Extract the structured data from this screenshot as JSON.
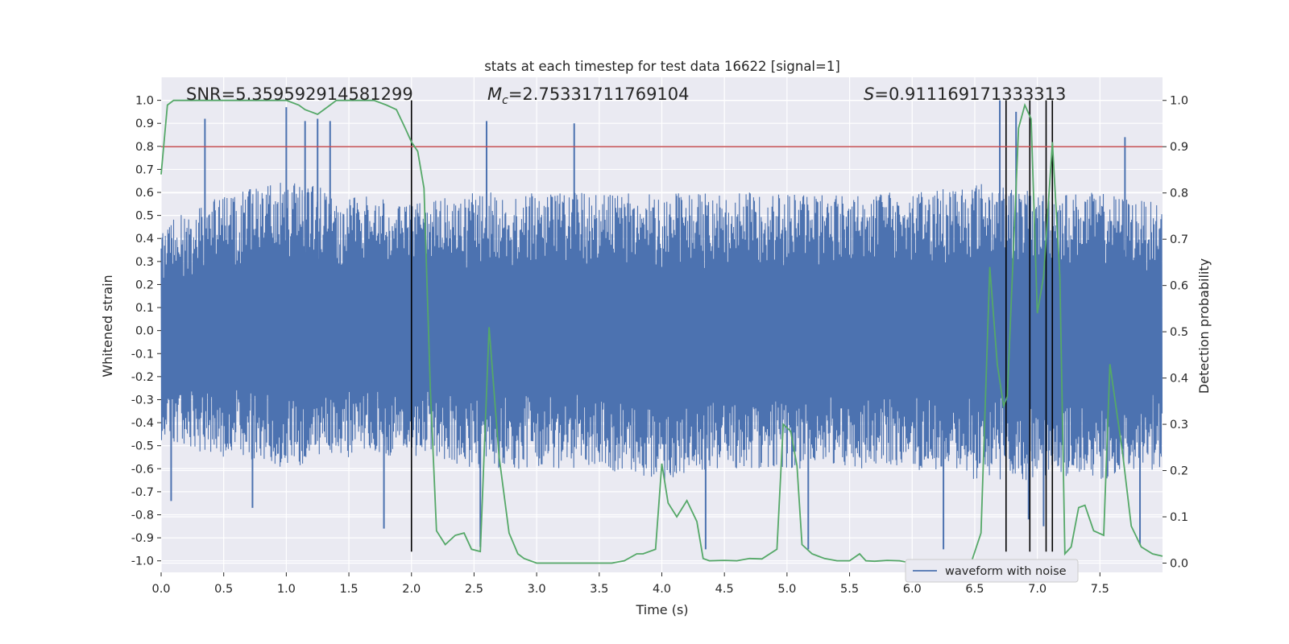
{
  "chart_data": {
    "type": "line",
    "title": "stats at each timestep for test data 16622 [signal=1]",
    "xlabel": "Time (s)",
    "ylabel_left": "Whitened strain",
    "ylabel_right": "Detection probability",
    "xlim": [
      0.0,
      8.0
    ],
    "ylim_left": [
      -1.05,
      1.1
    ],
    "ylim_right": [
      -0.02,
      1.05
    ],
    "x_ticks": [
      "0.0",
      "0.5",
      "1.0",
      "1.5",
      "2.0",
      "2.5",
      "3.0",
      "3.5",
      "4.0",
      "4.5",
      "5.0",
      "5.5",
      "6.0",
      "6.5",
      "7.0",
      "7.5"
    ],
    "x_tick_values": [
      0.0,
      0.5,
      1.0,
      1.5,
      2.0,
      2.5,
      3.0,
      3.5,
      4.0,
      4.5,
      5.0,
      5.5,
      6.0,
      6.5,
      7.0,
      7.5
    ],
    "y_left_ticks": [
      "1.0",
      "0.9",
      "0.8",
      "0.7",
      "0.6",
      "0.5",
      "0.4",
      "0.3",
      "0.2",
      "0.1",
      "0.0",
      "-0.1",
      "-0.2",
      "-0.3",
      "-0.4",
      "-0.5",
      "-0.6",
      "-0.7",
      "-0.8",
      "-0.9",
      "-1.0"
    ],
    "y_left_tick_values": [
      1.0,
      0.9,
      0.8,
      0.7,
      0.6,
      0.5,
      0.4,
      0.3,
      0.2,
      0.1,
      0.0,
      -0.1,
      -0.2,
      -0.3,
      -0.4,
      -0.5,
      -0.6,
      -0.7,
      -0.8,
      -0.9,
      -1.0
    ],
    "y_right_ticks": [
      "1.0",
      "0.9",
      "0.8",
      "0.7",
      "0.6",
      "0.5",
      "0.4",
      "0.3",
      "0.2",
      "0.1",
      "0.0"
    ],
    "y_right_tick_values": [
      1.0,
      0.9,
      0.8,
      0.7,
      0.6,
      0.5,
      0.4,
      0.3,
      0.2,
      0.1,
      0.0
    ],
    "annotations": {
      "snr": "SNR=5.359592914581299",
      "mc_prefix": "M",
      "mc_sub": "c",
      "mc_value": "=2.75331711769104",
      "s_prefix": "S",
      "s_value": "=0.911169171333313"
    },
    "threshold": {
      "value": 0.9,
      "axis": "right",
      "color": "#c44e52"
    },
    "vertical_markers": [
      2.0,
      6.75,
      6.94,
      7.07,
      7.12
    ],
    "marker_range": [
      -0.96,
      1.0
    ],
    "series": [
      {
        "name": "waveform with noise",
        "axis": "left",
        "color": "#4c72b0",
        "envelope_positive": [
          [
            0.0,
            0.45
          ],
          [
            0.3,
            0.55
          ],
          [
            0.6,
            0.6
          ],
          [
            1.0,
            0.65
          ],
          [
            1.5,
            0.6
          ],
          [
            2.0,
            0.55
          ],
          [
            2.5,
            0.6
          ],
          [
            3.0,
            0.6
          ],
          [
            3.5,
            0.6
          ],
          [
            4.0,
            0.6
          ],
          [
            4.5,
            0.6
          ],
          [
            5.0,
            0.6
          ],
          [
            5.5,
            0.6
          ],
          [
            6.0,
            0.6
          ],
          [
            6.5,
            0.65
          ],
          [
            7.0,
            0.6
          ],
          [
            7.5,
            0.6
          ],
          [
            8.0,
            0.55
          ]
        ],
        "envelope_negative": [
          [
            0.0,
            -0.5
          ],
          [
            0.5,
            -0.55
          ],
          [
            1.0,
            -0.6
          ],
          [
            1.5,
            -0.55
          ],
          [
            2.0,
            -0.55
          ],
          [
            2.5,
            -0.6
          ],
          [
            3.0,
            -0.6
          ],
          [
            3.5,
            -0.6
          ],
          [
            4.0,
            -0.65
          ],
          [
            4.5,
            -0.6
          ],
          [
            5.0,
            -0.6
          ],
          [
            5.5,
            -0.6
          ],
          [
            6.0,
            -0.6
          ],
          [
            6.5,
            -0.65
          ],
          [
            7.0,
            -0.65
          ],
          [
            7.5,
            -0.65
          ],
          [
            8.0,
            -0.6
          ]
        ],
        "peaks_positive": [
          [
            0.35,
            0.92
          ],
          [
            1.0,
            0.97
          ],
          [
            1.15,
            0.91
          ],
          [
            1.25,
            0.92
          ],
          [
            1.35,
            0.91
          ],
          [
            2.6,
            0.91
          ],
          [
            3.3,
            0.9
          ],
          [
            6.7,
            1.0
          ],
          [
            6.83,
            0.95
          ],
          [
            7.7,
            0.84
          ]
        ],
        "peaks_negative": [
          [
            0.08,
            -0.74
          ],
          [
            0.73,
            -0.77
          ],
          [
            1.78,
            -0.86
          ],
          [
            2.55,
            -0.94
          ],
          [
            4.35,
            -0.95
          ],
          [
            5.17,
            -0.95
          ],
          [
            6.25,
            -0.95
          ],
          [
            6.93,
            -0.82
          ],
          [
            7.05,
            -0.85
          ],
          [
            7.82,
            -0.93
          ]
        ]
      },
      {
        "name": "detection probability",
        "axis": "right",
        "color": "#55a868",
        "x": [
          0.0,
          0.05,
          0.1,
          0.2,
          0.4,
          0.6,
          0.8,
          1.0,
          1.1,
          1.15,
          1.25,
          1.35,
          1.4,
          1.6,
          1.7,
          1.8,
          1.88,
          1.95,
          2.0,
          2.05,
          2.1,
          2.15,
          2.2,
          2.27,
          2.35,
          2.42,
          2.48,
          2.55,
          2.62,
          2.7,
          2.78,
          2.85,
          2.9,
          3.0,
          3.2,
          3.4,
          3.6,
          3.7,
          3.8,
          3.85,
          3.95,
          4.0,
          4.05,
          4.12,
          4.2,
          4.28,
          4.33,
          4.38,
          4.5,
          4.6,
          4.7,
          4.8,
          4.92,
          4.97,
          5.03,
          5.08,
          5.12,
          5.2,
          5.3,
          5.4,
          5.5,
          5.58,
          5.63,
          5.7,
          5.8,
          5.9,
          6.0,
          6.1,
          6.3,
          6.47,
          6.55,
          6.62,
          6.68,
          6.73,
          6.76,
          6.85,
          6.9,
          6.95,
          7.0,
          7.05,
          7.12,
          7.18,
          7.22,
          7.27,
          7.33,
          7.38,
          7.45,
          7.53,
          7.58,
          7.68,
          7.75,
          7.83,
          7.92,
          8.0
        ],
        "y": [
          0.84,
          0.99,
          1.0,
          1.0,
          1.0,
          1.0,
          1.0,
          1.0,
          0.99,
          0.98,
          0.97,
          0.99,
          1.0,
          1.0,
          1.0,
          0.99,
          0.98,
          0.94,
          0.91,
          0.89,
          0.81,
          0.38,
          0.07,
          0.04,
          0.06,
          0.065,
          0.03,
          0.025,
          0.51,
          0.23,
          0.065,
          0.02,
          0.01,
          0.0,
          0.0,
          0.0,
          0.0,
          0.005,
          0.02,
          0.02,
          0.03,
          0.215,
          0.13,
          0.1,
          0.135,
          0.09,
          0.01,
          0.005,
          0.006,
          0.005,
          0.01,
          0.009,
          0.03,
          0.3,
          0.285,
          0.21,
          0.04,
          0.02,
          0.01,
          0.005,
          0.005,
          0.02,
          0.005,
          0.004,
          0.006,
          0.005,
          0.0,
          0.0,
          0.0,
          0.0,
          0.065,
          0.64,
          0.43,
          0.34,
          0.36,
          0.94,
          0.99,
          0.96,
          0.54,
          0.62,
          0.91,
          0.62,
          0.02,
          0.035,
          0.12,
          0.125,
          0.07,
          0.06,
          0.43,
          0.24,
          0.08,
          0.035,
          0.02,
          0.015
        ]
      }
    ],
    "legend": {
      "position": "lower-center-right",
      "entries": [
        "waveform with noise"
      ]
    },
    "grid": true,
    "background": "#eaeaf2"
  }
}
